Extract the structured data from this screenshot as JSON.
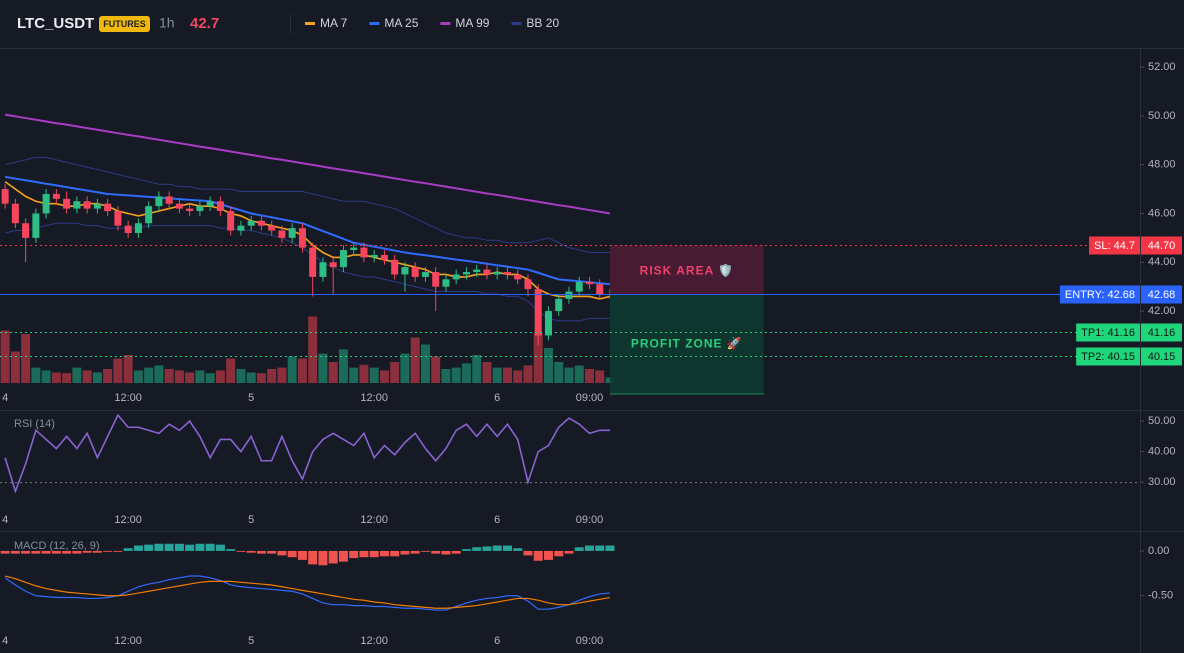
{
  "header": {
    "symbol": "LTC_USDT",
    "badge": "FUTURES",
    "interval": "1h",
    "price": "42.7"
  },
  "time_axis": {
    "x": [
      0,
      1,
      2,
      3,
      4,
      5,
      6,
      7,
      8,
      9,
      10,
      11,
      12,
      13,
      14,
      15,
      16,
      17,
      18,
      19,
      20,
      21,
      22,
      23,
      24,
      25,
      26,
      27,
      28,
      29,
      30,
      31,
      32,
      33,
      34,
      35,
      36,
      37,
      38,
      39,
      40,
      41,
      42,
      43,
      44,
      45,
      46,
      47,
      48,
      49,
      50,
      51,
      52,
      53,
      54,
      55,
      56,
      57,
      58,
      59
    ],
    "xlim": [
      -0.5,
      110.7
    ],
    "xticks": [
      {
        "value": 0,
        "label": "4"
      },
      {
        "value": 12,
        "label": "12:00"
      },
      {
        "value": 24,
        "label": "5"
      },
      {
        "value": 36,
        "label": "12:00"
      },
      {
        "value": 48,
        "label": "6"
      },
      {
        "value": 57,
        "label": "09:00"
      }
    ]
  },
  "chart_data": [
    {
      "type": "candlestick",
      "ylim": [
        38.97,
        52.7
      ],
      "yticks": [
        {
          "value": 52,
          "label": "52.00"
        },
        {
          "value": 50,
          "label": "50.00"
        },
        {
          "value": 48,
          "label": "48.00"
        },
        {
          "value": 46,
          "label": "46.00"
        },
        {
          "value": 44,
          "label": "44.00"
        },
        {
          "value": 42,
          "label": "42.00"
        }
      ],
      "up_color": "#2ebd85",
      "down_color": "#f6465d",
      "open": [
        47.0,
        46.4,
        45.6,
        45.0,
        46.0,
        46.8,
        46.6,
        46.2,
        46.5,
        46.2,
        46.4,
        46.1,
        45.5,
        45.2,
        45.6,
        46.3,
        46.7,
        46.4,
        46.2,
        46.1,
        46.3,
        46.5,
        46.1,
        45.3,
        45.5,
        45.7,
        45.5,
        45.3,
        45.0,
        45.4,
        44.6,
        43.4,
        44.0,
        43.8,
        44.5,
        44.6,
        44.2,
        44.3,
        44.1,
        43.5,
        43.8,
        43.4,
        43.6,
        43.0,
        43.3,
        43.5,
        43.6,
        43.7,
        43.5,
        43.6,
        43.5,
        43.3,
        42.9,
        41.0,
        42.0,
        42.5,
        42.8,
        43.2,
        43.1,
        42.7
      ],
      "high": [
        47.2,
        46.6,
        45.8,
        46.2,
        47.0,
        47.0,
        46.9,
        46.7,
        46.7,
        46.6,
        46.6,
        46.3,
        45.7,
        45.8,
        46.5,
        46.9,
        46.9,
        46.6,
        46.4,
        46.5,
        46.7,
        46.7,
        46.3,
        45.7,
        45.9,
        45.9,
        45.7,
        45.5,
        45.6,
        45.6,
        44.8,
        44.2,
        44.2,
        44.7,
        44.8,
        44.8,
        44.5,
        44.5,
        44.3,
        44.0,
        44.0,
        43.8,
        43.8,
        43.5,
        43.7,
        43.8,
        43.9,
        43.9,
        43.8,
        43.8,
        43.7,
        43.5,
        43.1,
        42.2,
        42.7,
        43.0,
        43.4,
        43.4,
        43.3,
        42.9
      ],
      "low": [
        46.2,
        45.4,
        44.0,
        44.8,
        45.8,
        46.4,
        46.0,
        46.0,
        46.0,
        46.0,
        45.9,
        45.3,
        45.0,
        45.0,
        45.4,
        46.1,
        46.2,
        46.0,
        45.9,
        45.9,
        46.1,
        45.9,
        45.1,
        45.1,
        45.3,
        45.3,
        45.1,
        44.8,
        44.8,
        44.4,
        42.6,
        43.2,
        42.7,
        43.6,
        44.3,
        44.0,
        44.0,
        43.9,
        43.3,
        42.8,
        43.2,
        43.2,
        42.0,
        42.8,
        43.1,
        43.3,
        43.4,
        43.3,
        43.3,
        43.3,
        43.1,
        42.6,
        40.6,
        40.8,
        41.8,
        42.3,
        42.6,
        42.9,
        42.5,
        42.5
      ],
      "close": [
        46.4,
        45.6,
        45.0,
        46.0,
        46.8,
        46.6,
        46.2,
        46.5,
        46.2,
        46.4,
        46.1,
        45.5,
        45.2,
        45.6,
        46.3,
        46.7,
        46.4,
        46.2,
        46.1,
        46.3,
        46.5,
        46.1,
        45.3,
        45.5,
        45.7,
        45.5,
        45.3,
        45.0,
        45.4,
        44.6,
        43.4,
        44.0,
        43.8,
        44.5,
        44.6,
        44.2,
        44.3,
        44.1,
        43.5,
        43.8,
        43.4,
        43.6,
        43.0,
        43.3,
        43.5,
        43.6,
        43.7,
        43.5,
        43.6,
        43.5,
        43.3,
        42.9,
        41.0,
        42.0,
        42.5,
        42.8,
        43.2,
        43.1,
        42.7,
        42.7
      ],
      "volume": {
        "ylim": [
          0,
          100
        ],
        "up_color": "#1c6b5a",
        "down_color": "#8c2f3c",
        "values": [
          75,
          45,
          70,
          22,
          18,
          15,
          14,
          22,
          18,
          15,
          20,
          35,
          40,
          18,
          22,
          25,
          20,
          18,
          15,
          18,
          14,
          18,
          35,
          20,
          15,
          14,
          20,
          22,
          38,
          35,
          95,
          42,
          30,
          48,
          22,
          26,
          22,
          18,
          30,
          42,
          65,
          55,
          38,
          20,
          22,
          28,
          40,
          30,
          22,
          22,
          18,
          25,
          72,
          50,
          30,
          22,
          25,
          20,
          18,
          8
        ]
      },
      "series": [
        {
          "name": "MA 7",
          "color": "#f7a21b",
          "values": [
            47.3,
            47.0,
            46.7,
            46.5,
            46.4,
            46.4,
            46.3,
            46.3,
            46.4,
            46.4,
            46.3,
            46.1,
            46.0,
            45.9,
            46.0,
            46.1,
            46.2,
            46.3,
            46.4,
            46.3,
            46.3,
            46.2,
            46.0,
            45.9,
            45.7,
            45.6,
            45.5,
            45.4,
            45.3,
            45.1,
            44.7,
            44.4,
            44.2,
            44.2,
            44.3,
            44.3,
            44.2,
            44.1,
            44.0,
            43.9,
            43.8,
            43.7,
            43.5,
            43.5,
            43.4,
            43.4,
            43.5,
            43.5,
            43.6,
            43.5,
            43.5,
            43.3,
            42.9,
            42.7,
            42.6,
            42.6,
            42.6,
            42.6,
            42.5,
            42.6
          ]
        },
        {
          "name": "MA 25",
          "color": "#2f6bff",
          "values": [
            47.5,
            47.43,
            47.36,
            47.29,
            47.22,
            47.15,
            47.08,
            47.01,
            46.94,
            46.87,
            46.8,
            46.77,
            46.74,
            46.71,
            46.68,
            46.65,
            46.62,
            46.59,
            46.56,
            46.53,
            46.5,
            46.38,
            46.25,
            46.13,
            46.0,
            45.92,
            45.84,
            45.76,
            45.68,
            45.6,
            45.44,
            45.28,
            45.12,
            44.96,
            44.8,
            44.72,
            44.64,
            44.56,
            44.48,
            44.4,
            44.34,
            44.29,
            44.23,
            44.17,
            44.11,
            44.06,
            44.0,
            43.94,
            43.88,
            43.82,
            43.76,
            43.7,
            43.57,
            43.43,
            43.3,
            43.26,
            43.22,
            43.18,
            43.14,
            43.1
          ]
        },
        {
          "name": "MA 99",
          "color": "#a93bc4",
          "values": [
            50.05,
            49.98,
            49.91,
            49.84,
            49.77,
            49.7,
            49.64,
            49.57,
            49.5,
            49.43,
            49.36,
            49.29,
            49.22,
            49.16,
            49.09,
            49.02,
            48.95,
            48.88,
            48.81,
            48.74,
            48.68,
            48.61,
            48.54,
            48.47,
            48.4,
            48.33,
            48.26,
            48.2,
            48.13,
            48.06,
            47.99,
            47.92,
            47.85,
            47.78,
            47.72,
            47.65,
            47.58,
            47.51,
            47.44,
            47.37,
            47.3,
            47.24,
            47.17,
            47.1,
            47.03,
            46.96,
            46.89,
            46.82,
            46.76,
            46.69,
            46.62,
            46.55,
            46.48,
            46.41,
            46.34,
            46.28,
            46.21,
            46.14,
            46.07,
            46.0
          ]
        },
        {
          "name": "BB 20",
          "color": "#2d3b86",
          "upper": [
            48.0,
            48.1,
            48.2,
            48.3,
            48.3,
            48.2,
            48.1,
            48.0,
            47.9,
            47.8,
            47.7,
            47.6,
            47.5,
            47.4,
            47.3,
            47.2,
            47.2,
            47.1,
            47.1,
            47.0,
            47.0,
            47.0,
            47.0,
            46.9,
            46.9,
            46.9,
            46.9,
            46.9,
            46.9,
            46.9,
            46.8,
            46.7,
            46.6,
            46.5,
            46.5,
            46.5,
            46.4,
            46.3,
            46.2,
            46.0,
            45.8,
            45.6,
            45.4,
            45.2,
            45.1,
            45.0,
            45.0,
            44.9,
            44.9,
            44.8,
            44.8,
            44.8,
            44.9,
            45.0,
            44.8,
            44.6,
            44.5,
            44.4,
            44.4,
            44.4
          ],
          "lower": [
            45.2,
            45.3,
            45.3,
            45.4,
            45.5,
            45.6,
            45.6,
            45.6,
            45.5,
            45.5,
            45.4,
            45.4,
            45.4,
            45.4,
            45.5,
            45.5,
            45.5,
            45.5,
            45.5,
            45.5,
            45.5,
            45.4,
            45.4,
            45.3,
            45.3,
            45.2,
            45.1,
            45.0,
            44.8,
            44.6,
            44.3,
            44.0,
            43.8,
            43.6,
            43.5,
            43.4,
            43.4,
            43.3,
            43.2,
            43.1,
            43.0,
            42.9,
            42.8,
            42.8,
            42.8,
            42.8,
            42.8,
            42.7,
            42.7,
            42.6,
            42.6,
            42.4,
            42.0,
            41.7,
            41.6,
            41.6,
            41.6,
            41.7,
            41.7,
            41.7
          ]
        }
      ],
      "levels": [
        {
          "name": "SL: 44.7",
          "value": 44.7,
          "label": "44.70",
          "color": "#f23645",
          "text_color": "#ffffff",
          "dashed": true
        },
        {
          "name": "ENTRY: 42.68",
          "value": 42.68,
          "label": "42.68",
          "color": "#2962ff",
          "text_color": "#ffffff",
          "dashed": false
        },
        {
          "name": "TP1: 41.16",
          "value": 41.16,
          "label": "41.16",
          "color": "#1fd67a",
          "text_color": "#0b1a12",
          "dashed": true
        },
        {
          "name": "TP2: 40.15",
          "value": 40.15,
          "label": "40.15",
          "color": "#1fd67a",
          "text_color": "#0b1a12",
          "dashed": true
        }
      ],
      "zones": [
        {
          "label": "RISK AREA 🛡️",
          "top": 44.7,
          "bottom": 42.68,
          "x_from": 59,
          "x_to": 74,
          "color": "#4c1c33",
          "text_color": "#f23f6d"
        },
        {
          "label": "PROFIT ZONE 🚀",
          "top": 42.68,
          "bottom": 38.6,
          "x_from": 59,
          "x_to": 74,
          "color": "#0d3a30",
          "text_color": "#26d07c"
        }
      ]
    },
    {
      "type": "line",
      "title": "RSI (14)",
      "ylim": [
        21.5,
        53
      ],
      "yticks": [
        {
          "value": 50,
          "label": "50.00"
        },
        {
          "value": 40,
          "label": "40.00"
        },
        {
          "value": 30,
          "label": "30.00"
        }
      ],
      "guide": 30,
      "series": [
        {
          "color": "#8a63d2",
          "values": [
            38,
            27,
            36,
            47,
            44,
            41,
            45,
            41,
            46,
            38,
            45,
            52,
            48,
            48,
            47,
            46,
            49,
            47,
            50,
            45,
            38,
            44,
            44,
            40,
            45,
            37,
            37,
            45,
            37,
            31,
            40,
            44,
            46,
            44,
            42,
            46,
            38,
            42,
            39,
            43,
            46,
            41,
            37,
            41,
            47,
            49,
            45,
            49,
            45,
            49,
            44,
            30,
            40,
            42,
            48,
            51,
            49,
            46,
            47,
            47
          ]
        }
      ]
    },
    {
      "type": "macd",
      "title": "MACD (12, 26, 9)",
      "ylim": [
        -0.86,
        0.2
      ],
      "yticks": [
        {
          "value": 0,
          "label": "0.00"
        },
        {
          "value": -0.5,
          "label": "-0.50"
        }
      ],
      "histogram": {
        "up_color": "#26a69a",
        "down_color": "#ef5350",
        "values": [
          -0.03,
          -0.03,
          -0.03,
          -0.03,
          -0.03,
          -0.03,
          -0.03,
          -0.03,
          -0.02,
          -0.02,
          -0.01,
          -0.01,
          0.03,
          0.06,
          0.07,
          0.08,
          0.08,
          0.08,
          0.07,
          0.08,
          0.08,
          0.07,
          0.02,
          -0.01,
          -0.02,
          -0.03,
          -0.03,
          -0.05,
          -0.07,
          -0.1,
          -0.15,
          -0.16,
          -0.14,
          -0.12,
          -0.08,
          -0.07,
          -0.07,
          -0.06,
          -0.06,
          -0.04,
          -0.03,
          -0.01,
          -0.03,
          -0.04,
          -0.03,
          0.02,
          0.04,
          0.05,
          0.06,
          0.06,
          0.03,
          -0.05,
          -0.11,
          -0.1,
          -0.06,
          -0.03,
          0.04,
          0.06,
          0.06,
          0.06
        ]
      },
      "series": [
        {
          "color": "#2f6bff",
          "values": [
            -0.3,
            -0.38,
            -0.45,
            -0.5,
            -0.51,
            -0.52,
            -0.52,
            -0.52,
            -0.53,
            -0.53,
            -0.52,
            -0.5,
            -0.45,
            -0.4,
            -0.37,
            -0.35,
            -0.32,
            -0.3,
            -0.28,
            -0.28,
            -0.3,
            -0.33,
            -0.38,
            -0.4,
            -0.41,
            -0.42,
            -0.43,
            -0.44,
            -0.45,
            -0.48,
            -0.53,
            -0.58,
            -0.6,
            -0.6,
            -0.61,
            -0.61,
            -0.62,
            -0.62,
            -0.63,
            -0.64,
            -0.64,
            -0.65,
            -0.66,
            -0.66,
            -0.62,
            -0.58,
            -0.55,
            -0.53,
            -0.52,
            -0.5,
            -0.5,
            -0.56,
            -0.65,
            -0.65,
            -0.63,
            -0.6,
            -0.55,
            -0.51,
            -0.48,
            -0.47
          ]
        },
        {
          "color": "#f57c00",
          "values": [
            -0.28,
            -0.31,
            -0.35,
            -0.39,
            -0.42,
            -0.44,
            -0.46,
            -0.47,
            -0.48,
            -0.49,
            -0.5,
            -0.5,
            -0.49,
            -0.47,
            -0.45,
            -0.43,
            -0.41,
            -0.39,
            -0.37,
            -0.35,
            -0.34,
            -0.34,
            -0.34,
            -0.35,
            -0.36,
            -0.37,
            -0.38,
            -0.4,
            -0.42,
            -0.44,
            -0.46,
            -0.48,
            -0.5,
            -0.52,
            -0.54,
            -0.55,
            -0.57,
            -0.58,
            -0.6,
            -0.61,
            -0.62,
            -0.63,
            -0.64,
            -0.64,
            -0.63,
            -0.62,
            -0.61,
            -0.59,
            -0.57,
            -0.55,
            -0.53,
            -0.53,
            -0.55,
            -0.58,
            -0.6,
            -0.6,
            -0.58,
            -0.56,
            -0.54,
            -0.52
          ]
        }
      ]
    }
  ]
}
